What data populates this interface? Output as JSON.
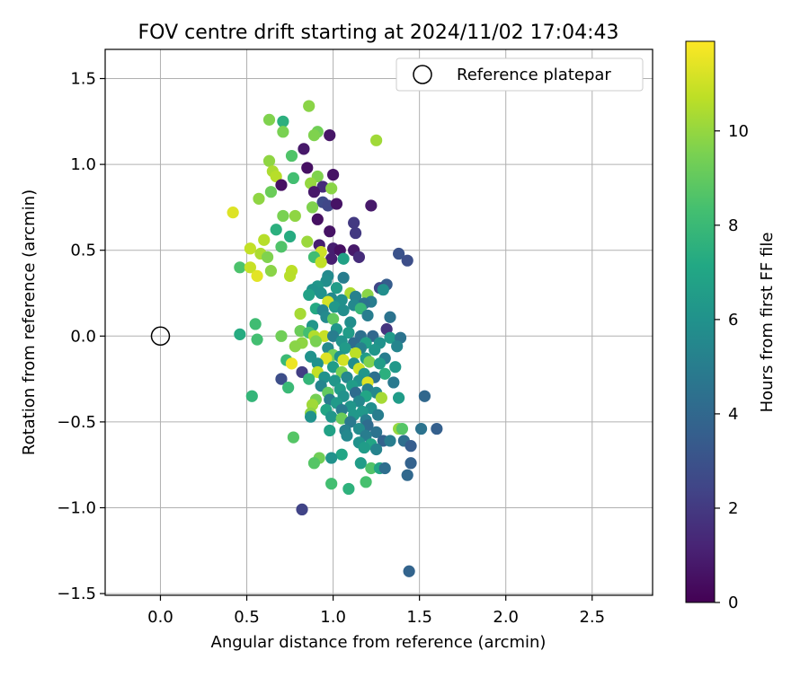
{
  "chart_data": {
    "type": "scatter",
    "title": "FOV centre drift starting at 2024/11/02 17:04:43",
    "xlabel": "Angular distance from reference (arcmin)",
    "ylabel": "Rotation from reference (arcmin)",
    "xlim": [
      -0.32,
      2.85
    ],
    "ylim": [
      -1.51,
      1.67
    ],
    "xticks": [
      0.0,
      0.5,
      1.0,
      1.5,
      2.0,
      2.5
    ],
    "xtick_labels": [
      "0.0",
      "0.5",
      "1.0",
      "1.5",
      "2.0",
      "2.5"
    ],
    "yticks": [
      -1.5,
      -1.0,
      -0.5,
      0.0,
      0.5,
      1.0,
      1.5
    ],
    "ytick_labels": [
      "−1.5",
      "−1.0",
      "−0.5",
      "0.0",
      "0.5",
      "1.0",
      "1.5"
    ],
    "grid": true,
    "legend": {
      "position": "top-right",
      "entries": [
        "Reference platepar"
      ]
    },
    "reference_point": {
      "x": 0.0,
      "y": 0.0
    },
    "colorbar": {
      "label": "Hours from first FF file",
      "colormap": "viridis",
      "range": [
        0,
        11.9
      ],
      "ticks": [
        0,
        2,
        4,
        6,
        8,
        10
      ],
      "tick_labels": [
        "0",
        "2",
        "4",
        "6",
        "8",
        "10"
      ]
    },
    "points": [
      {
        "x": 0.86,
        "y": 1.34,
        "hours": 9.8
      },
      {
        "x": 0.63,
        "y": 1.26,
        "hours": 9.6
      },
      {
        "x": 0.71,
        "y": 1.25,
        "hours": 7.5
      },
      {
        "x": 0.91,
        "y": 1.19,
        "hours": 9.3
      },
      {
        "x": 0.71,
        "y": 1.19,
        "hours": 9.5
      },
      {
        "x": 0.89,
        "y": 1.17,
        "hours": 9.6
      },
      {
        "x": 0.98,
        "y": 1.17,
        "hours": 0.7
      },
      {
        "x": 1.25,
        "y": 1.14,
        "hours": 10.2
      },
      {
        "x": 0.83,
        "y": 1.09,
        "hours": 0.8
      },
      {
        "x": 0.76,
        "y": 1.05,
        "hours": 8.6
      },
      {
        "x": 0.63,
        "y": 1.02,
        "hours": 9.9
      },
      {
        "x": 0.85,
        "y": 0.98,
        "hours": 0.5
      },
      {
        "x": 0.65,
        "y": 0.96,
        "hours": 10.4
      },
      {
        "x": 0.67,
        "y": 0.93,
        "hours": 10.6
      },
      {
        "x": 0.91,
        "y": 0.93,
        "hours": 9.6
      },
      {
        "x": 0.77,
        "y": 0.92,
        "hours": 8.3
      },
      {
        "x": 1.0,
        "y": 0.94,
        "hours": 0.6
      },
      {
        "x": 0.87,
        "y": 0.89,
        "hours": 10.0
      },
      {
        "x": 0.7,
        "y": 0.88,
        "hours": 0.5
      },
      {
        "x": 0.94,
        "y": 0.87,
        "hours": 1.5
      },
      {
        "x": 0.99,
        "y": 0.86,
        "hours": 9.8
      },
      {
        "x": 0.64,
        "y": 0.84,
        "hours": 9.2
      },
      {
        "x": 0.89,
        "y": 0.84,
        "hours": 0.8
      },
      {
        "x": 0.57,
        "y": 0.8,
        "hours": 9.9
      },
      {
        "x": 0.94,
        "y": 0.78,
        "hours": 2.7
      },
      {
        "x": 0.97,
        "y": 0.76,
        "hours": 2.5
      },
      {
        "x": 1.02,
        "y": 0.77,
        "hours": 0.6
      },
      {
        "x": 0.88,
        "y": 0.75,
        "hours": 9.6
      },
      {
        "x": 1.22,
        "y": 0.76,
        "hours": 0.8
      },
      {
        "x": 0.42,
        "y": 0.72,
        "hours": 11.3
      },
      {
        "x": 0.71,
        "y": 0.7,
        "hours": 9.5
      },
      {
        "x": 0.78,
        "y": 0.7,
        "hours": 9.9
      },
      {
        "x": 0.91,
        "y": 0.68,
        "hours": 0.5
      },
      {
        "x": 1.12,
        "y": 0.66,
        "hours": 2.0
      },
      {
        "x": 0.67,
        "y": 0.62,
        "hours": 7.5
      },
      {
        "x": 0.98,
        "y": 0.61,
        "hours": 0.6
      },
      {
        "x": 1.13,
        "y": 0.6,
        "hours": 2.0
      },
      {
        "x": 0.75,
        "y": 0.58,
        "hours": 7.3
      },
      {
        "x": 0.6,
        "y": 0.56,
        "hours": 10.6
      },
      {
        "x": 0.85,
        "y": 0.55,
        "hours": 10.1
      },
      {
        "x": 0.92,
        "y": 0.53,
        "hours": 1.0
      },
      {
        "x": 0.52,
        "y": 0.51,
        "hours": 10.8
      },
      {
        "x": 0.7,
        "y": 0.52,
        "hours": 8.6
      },
      {
        "x": 0.93,
        "y": 0.49,
        "hours": 11.0
      },
      {
        "x": 1.0,
        "y": 0.51,
        "hours": 1.0
      },
      {
        "x": 1.04,
        "y": 0.5,
        "hours": 0.5
      },
      {
        "x": 1.12,
        "y": 0.5,
        "hours": 0.8
      },
      {
        "x": 0.58,
        "y": 0.48,
        "hours": 10.4
      },
      {
        "x": 0.62,
        "y": 0.46,
        "hours": 9.6
      },
      {
        "x": 0.89,
        "y": 0.46,
        "hours": 8.2
      },
      {
        "x": 0.99,
        "y": 0.45,
        "hours": 1.0
      },
      {
        "x": 1.06,
        "y": 0.45,
        "hours": 6.8
      },
      {
        "x": 1.15,
        "y": 0.46,
        "hours": 1.5
      },
      {
        "x": 1.38,
        "y": 0.48,
        "hours": 3.0
      },
      {
        "x": 1.43,
        "y": 0.44,
        "hours": 2.8
      },
      {
        "x": 0.93,
        "y": 0.43,
        "hours": 10.8
      },
      {
        "x": 0.46,
        "y": 0.4,
        "hours": 8.5
      },
      {
        "x": 0.52,
        "y": 0.4,
        "hours": 10.9
      },
      {
        "x": 0.64,
        "y": 0.38,
        "hours": 9.8
      },
      {
        "x": 0.76,
        "y": 0.38,
        "hours": 10.7
      },
      {
        "x": 0.56,
        "y": 0.35,
        "hours": 11.4
      },
      {
        "x": 0.75,
        "y": 0.35,
        "hours": 10.6
      },
      {
        "x": 0.97,
        "y": 0.35,
        "hours": 5.6
      },
      {
        "x": 1.06,
        "y": 0.34,
        "hours": 5.0
      },
      {
        "x": 0.96,
        "y": 0.32,
        "hours": 5.8
      },
      {
        "x": 1.31,
        "y": 0.3,
        "hours": 3.5
      },
      {
        "x": 0.91,
        "y": 0.29,
        "hours": 6.2
      },
      {
        "x": 1.02,
        "y": 0.28,
        "hours": 6.5
      },
      {
        "x": 1.27,
        "y": 0.28,
        "hours": 2.5
      },
      {
        "x": 1.29,
        "y": 0.27,
        "hours": 5.8
      },
      {
        "x": 0.88,
        "y": 0.27,
        "hours": 6.0
      },
      {
        "x": 0.93,
        "y": 0.25,
        "hours": 6.0
      },
      {
        "x": 0.86,
        "y": 0.24,
        "hours": 6.8
      },
      {
        "x": 1.1,
        "y": 0.25,
        "hours": 10.4
      },
      {
        "x": 1.2,
        "y": 0.24,
        "hours": 9.8
      },
      {
        "x": 1.13,
        "y": 0.23,
        "hours": 5.2
      },
      {
        "x": 0.99,
        "y": 0.22,
        "hours": 5.6
      },
      {
        "x": 1.05,
        "y": 0.21,
        "hours": 5.9
      },
      {
        "x": 0.97,
        "y": 0.2,
        "hours": 11.1
      },
      {
        "x": 1.22,
        "y": 0.2,
        "hours": 5.0
      },
      {
        "x": 1.18,
        "y": 0.19,
        "hours": 4.5
      },
      {
        "x": 1.12,
        "y": 0.18,
        "hours": 5.5
      },
      {
        "x": 1.01,
        "y": 0.17,
        "hours": 6.3
      },
      {
        "x": 0.9,
        "y": 0.16,
        "hours": 7.2
      },
      {
        "x": 0.94,
        "y": 0.15,
        "hours": 5.4
      },
      {
        "x": 1.06,
        "y": 0.15,
        "hours": 5.8
      },
      {
        "x": 1.16,
        "y": 0.16,
        "hours": 7.9
      },
      {
        "x": 0.81,
        "y": 0.13,
        "hours": 10.3
      },
      {
        "x": 1.2,
        "y": 0.12,
        "hours": 5.0
      },
      {
        "x": 0.96,
        "y": 0.11,
        "hours": 5.6
      },
      {
        "x": 1.33,
        "y": 0.11,
        "hours": 4.5
      },
      {
        "x": 1.0,
        "y": 0.1,
        "hours": 9.0
      },
      {
        "x": 0.55,
        "y": 0.07,
        "hours": 8.2
      },
      {
        "x": 1.1,
        "y": 0.08,
        "hours": 5.8
      },
      {
        "x": 0.88,
        "y": 0.06,
        "hours": 6.2
      },
      {
        "x": 1.02,
        "y": 0.04,
        "hours": 6.2
      },
      {
        "x": 1.31,
        "y": 0.04,
        "hours": 1.8
      },
      {
        "x": 0.81,
        "y": 0.03,
        "hours": 9.2
      },
      {
        "x": 0.86,
        "y": 0.02,
        "hours": 8.3
      },
      {
        "x": 1.09,
        "y": 0.02,
        "hours": 6.5
      },
      {
        "x": 0.46,
        "y": 0.01,
        "hours": 7.3
      },
      {
        "x": 0.7,
        "y": 0.0,
        "hours": 9.3
      },
      {
        "x": 0.89,
        "y": 0.0,
        "hours": 10.5
      },
      {
        "x": 0.95,
        "y": 0.0,
        "hours": 10.9
      },
      {
        "x": 1.0,
        "y": 0.0,
        "hours": 5.0
      },
      {
        "x": 1.16,
        "y": 0.0,
        "hours": 4.4
      },
      {
        "x": 1.23,
        "y": 0.0,
        "hours": 4.0
      },
      {
        "x": 1.33,
        "y": -0.01,
        "hours": 6.4
      },
      {
        "x": 1.39,
        "y": -0.01,
        "hours": 4.5
      },
      {
        "x": 0.56,
        "y": -0.02,
        "hours": 8.3
      },
      {
        "x": 0.82,
        "y": -0.04,
        "hours": 9.9
      },
      {
        "x": 0.9,
        "y": -0.03,
        "hours": 9.5
      },
      {
        "x": 1.05,
        "y": -0.03,
        "hours": 6.1
      },
      {
        "x": 1.12,
        "y": -0.04,
        "hours": 4.2
      },
      {
        "x": 1.19,
        "y": -0.04,
        "hours": 6.8
      },
      {
        "x": 1.27,
        "y": -0.04,
        "hours": 6.0
      },
      {
        "x": 1.37,
        "y": -0.06,
        "hours": 5.4
      },
      {
        "x": 0.78,
        "y": -0.06,
        "hours": 9.8
      },
      {
        "x": 0.97,
        "y": -0.07,
        "hours": 5.6
      },
      {
        "x": 1.07,
        "y": -0.07,
        "hours": 6.4
      },
      {
        "x": 1.16,
        "y": -0.07,
        "hours": 5.2
      },
      {
        "x": 1.24,
        "y": -0.08,
        "hours": 6.2
      },
      {
        "x": 1.13,
        "y": -0.1,
        "hours": 10.7
      },
      {
        "x": 1.0,
        "y": -0.11,
        "hours": 9.3
      },
      {
        "x": 0.87,
        "y": -0.12,
        "hours": 6.0
      },
      {
        "x": 1.04,
        "y": -0.12,
        "hours": 6.0
      },
      {
        "x": 0.96,
        "y": -0.13,
        "hours": 11.3
      },
      {
        "x": 1.19,
        "y": -0.13,
        "hours": 6.5
      },
      {
        "x": 1.3,
        "y": -0.13,
        "hours": 5.0
      },
      {
        "x": 0.73,
        "y": -0.14,
        "hours": 8.0
      },
      {
        "x": 1.06,
        "y": -0.14,
        "hours": 11.1
      },
      {
        "x": 1.21,
        "y": -0.15,
        "hours": 9.6
      },
      {
        "x": 0.76,
        "y": -0.16,
        "hours": 11.6
      },
      {
        "x": 0.91,
        "y": -0.16,
        "hours": 6.0
      },
      {
        "x": 1.12,
        "y": -0.16,
        "hours": 5.8
      },
      {
        "x": 1.27,
        "y": -0.16,
        "hours": 6.5
      },
      {
        "x": 1.0,
        "y": -0.18,
        "hours": 6.5
      },
      {
        "x": 1.15,
        "y": -0.19,
        "hours": 11.0
      },
      {
        "x": 1.36,
        "y": -0.18,
        "hours": 6.3
      },
      {
        "x": 0.82,
        "y": -0.21,
        "hours": 2.2
      },
      {
        "x": 0.91,
        "y": -0.21,
        "hours": 10.8
      },
      {
        "x": 1.05,
        "y": -0.21,
        "hours": 9.5
      },
      {
        "x": 1.18,
        "y": -0.22,
        "hours": 6.2
      },
      {
        "x": 1.3,
        "y": -0.22,
        "hours": 7.5
      },
      {
        "x": 0.95,
        "y": -0.24,
        "hours": 6.0
      },
      {
        "x": 1.08,
        "y": -0.24,
        "hours": 5.5
      },
      {
        "x": 1.24,
        "y": -0.24,
        "hours": 4.4
      },
      {
        "x": 0.7,
        "y": -0.25,
        "hours": 2.8
      },
      {
        "x": 0.86,
        "y": -0.25,
        "hours": 7.8
      },
      {
        "x": 1.01,
        "y": -0.26,
        "hours": 6.2
      },
      {
        "x": 1.15,
        "y": -0.26,
        "hours": 6.0
      },
      {
        "x": 1.2,
        "y": -0.27,
        "hours": 11.3
      },
      {
        "x": 1.35,
        "y": -0.27,
        "hours": 4.8
      },
      {
        "x": 0.93,
        "y": -0.29,
        "hours": 5.4
      },
      {
        "x": 1.11,
        "y": -0.29,
        "hours": 6.5
      },
      {
        "x": 0.74,
        "y": -0.3,
        "hours": 8.0
      },
      {
        "x": 1.04,
        "y": -0.31,
        "hours": 6.5
      },
      {
        "x": 1.2,
        "y": -0.31,
        "hours": 5.2
      },
      {
        "x": 0.97,
        "y": -0.33,
        "hours": 9.0
      },
      {
        "x": 1.13,
        "y": -0.33,
        "hours": 4.2
      },
      {
        "x": 1.25,
        "y": -0.33,
        "hours": 5.5
      },
      {
        "x": 0.53,
        "y": -0.35,
        "hours": 7.8
      },
      {
        "x": 1.06,
        "y": -0.35,
        "hours": 6.0
      },
      {
        "x": 1.19,
        "y": -0.35,
        "hours": 7.0
      },
      {
        "x": 1.28,
        "y": -0.36,
        "hours": 10.3
      },
      {
        "x": 1.38,
        "y": -0.36,
        "hours": 6.5
      },
      {
        "x": 1.53,
        "y": -0.35,
        "hours": 4.0
      },
      {
        "x": 0.9,
        "y": -0.37,
        "hours": 9.4
      },
      {
        "x": 0.98,
        "y": -0.37,
        "hours": 5.0
      },
      {
        "x": 1.15,
        "y": -0.38,
        "hours": 5.5
      },
      {
        "x": 1.02,
        "y": -0.39,
        "hours": 6.4
      },
      {
        "x": 0.88,
        "y": -0.4,
        "hours": 10.2
      },
      {
        "x": 1.1,
        "y": -0.41,
        "hours": 6.2
      },
      {
        "x": 1.22,
        "y": -0.42,
        "hours": 5.8
      },
      {
        "x": 0.96,
        "y": -0.43,
        "hours": 7.0
      },
      {
        "x": 1.05,
        "y": -0.43,
        "hours": 4.9
      },
      {
        "x": 1.17,
        "y": -0.44,
        "hours": 6.3
      },
      {
        "x": 0.87,
        "y": -0.45,
        "hours": 9.9
      },
      {
        "x": 1.12,
        "y": -0.46,
        "hours": 6.3
      },
      {
        "x": 1.26,
        "y": -0.46,
        "hours": 5.0
      },
      {
        "x": 0.99,
        "y": -0.47,
        "hours": 6.2
      },
      {
        "x": 1.05,
        "y": -0.48,
        "hours": 9.2
      },
      {
        "x": 1.19,
        "y": -0.49,
        "hours": 5.0
      },
      {
        "x": 0.87,
        "y": -0.47,
        "hours": 6.0
      },
      {
        "x": 1.1,
        "y": -0.5,
        "hours": 4.8
      },
      {
        "x": 1.2,
        "y": -0.52,
        "hours": 4.2
      },
      {
        "x": 1.15,
        "y": -0.54,
        "hours": 5.7
      },
      {
        "x": 0.98,
        "y": -0.55,
        "hours": 6.8
      },
      {
        "x": 1.07,
        "y": -0.55,
        "hours": 5.2
      },
      {
        "x": 1.25,
        "y": -0.56,
        "hours": 4.5
      },
      {
        "x": 1.38,
        "y": -0.54,
        "hours": 10.0
      },
      {
        "x": 1.4,
        "y": -0.54,
        "hours": 8.7
      },
      {
        "x": 1.51,
        "y": -0.54,
        "hours": 4.5
      },
      {
        "x": 1.6,
        "y": -0.54,
        "hours": 3.6
      },
      {
        "x": 1.08,
        "y": -0.58,
        "hours": 5.5
      },
      {
        "x": 1.19,
        "y": -0.58,
        "hours": 5.0
      },
      {
        "x": 0.77,
        "y": -0.59,
        "hours": 8.7
      },
      {
        "x": 1.29,
        "y": -0.61,
        "hours": 3.8
      },
      {
        "x": 1.33,
        "y": -0.61,
        "hours": 5.0
      },
      {
        "x": 1.15,
        "y": -0.62,
        "hours": 6.0
      },
      {
        "x": 1.41,
        "y": -0.61,
        "hours": 4.3
      },
      {
        "x": 1.22,
        "y": -0.63,
        "hours": 7.0
      },
      {
        "x": 1.45,
        "y": -0.64,
        "hours": 3.5
      },
      {
        "x": 1.18,
        "y": -0.65,
        "hours": 6.5
      },
      {
        "x": 1.25,
        "y": -0.66,
        "hours": 5.3
      },
      {
        "x": 1.05,
        "y": -0.69,
        "hours": 7.0
      },
      {
        "x": 0.92,
        "y": -0.71,
        "hours": 9.3
      },
      {
        "x": 0.99,
        "y": -0.71,
        "hours": 6.0
      },
      {
        "x": 0.89,
        "y": -0.74,
        "hours": 8.7
      },
      {
        "x": 1.45,
        "y": -0.74,
        "hours": 3.7
      },
      {
        "x": 1.16,
        "y": -0.74,
        "hours": 6.5
      },
      {
        "x": 1.22,
        "y": -0.77,
        "hours": 8.6
      },
      {
        "x": 1.27,
        "y": -0.77,
        "hours": 7.0
      },
      {
        "x": 1.3,
        "y": -0.77,
        "hours": 4.3
      },
      {
        "x": 1.43,
        "y": -0.81,
        "hours": 4.0
      },
      {
        "x": 1.19,
        "y": -0.85,
        "hours": 8.4
      },
      {
        "x": 0.99,
        "y": -0.86,
        "hours": 8.3
      },
      {
        "x": 1.09,
        "y": -0.89,
        "hours": 7.6
      },
      {
        "x": 0.82,
        "y": -1.01,
        "hours": 2.4
      },
      {
        "x": 1.44,
        "y": -1.37,
        "hours": 3.8
      }
    ]
  }
}
